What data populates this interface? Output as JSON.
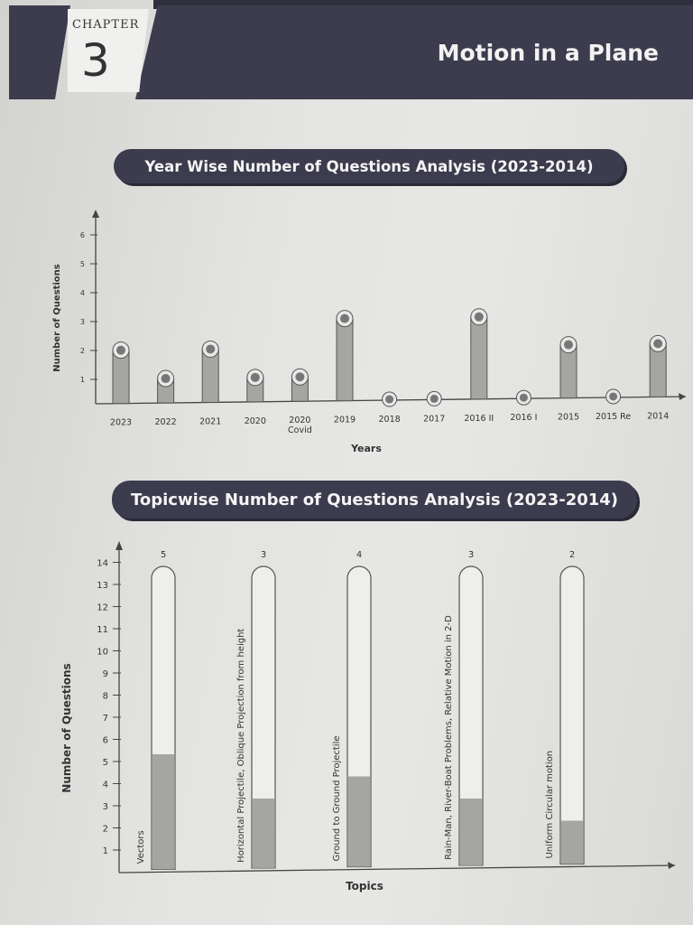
{
  "header": {
    "chapter_label": "CHAPTER",
    "chapter_number": "3",
    "chapter_title": "Motion in a Plane"
  },
  "colors": {
    "band": "#3c3c4e",
    "bar_fill": "#a5a5a2",
    "bar_outline": "#555555",
    "marker": "#777777"
  },
  "chart_data": [
    {
      "type": "bar",
      "title": "Year Wise Number of Questions Analysis (2023-2014)",
      "xlabel": "Years",
      "ylabel": "Number of Questions",
      "categories": [
        "2023",
        "2022",
        "2021",
        "2020",
        "2020 Covid",
        "2019",
        "2018",
        "2017",
        "2016 II",
        "2016 I",
        "2015",
        "2015 Re",
        "2014"
      ],
      "category_lines": [
        [
          "2023"
        ],
        [
          "2022"
        ],
        [
          "2021"
        ],
        [
          "2020"
        ],
        [
          "2020",
          "Covid"
        ],
        [
          "2019"
        ],
        [
          "2018"
        ],
        [
          "2017"
        ],
        [
          "2016 II"
        ],
        [
          "2016 I"
        ],
        [
          "2015"
        ],
        [
          "2015 Re"
        ],
        [
          "2014"
        ]
      ],
      "values": [
        2,
        1,
        2,
        1,
        1,
        3,
        0,
        0,
        3,
        0,
        2,
        0,
        2
      ],
      "yticks": [
        1,
        2,
        3,
        4,
        5,
        6
      ],
      "ylim": [
        0,
        6
      ],
      "grid": false
    },
    {
      "type": "bar",
      "title": "Topicwise Number of Questions Analysis (2023-2014)",
      "xlabel": "Topics",
      "ylabel": "Number of Questions",
      "categories": [
        "Vectors",
        "Horizontal Projectile, Oblique Projection from height",
        "Ground to Ground Projectile",
        "Rain-Man, River-Boat Problems, Relative Motion in 2-D",
        "Uniform Circular motion"
      ],
      "values": [
        5,
        3,
        4,
        3,
        2
      ],
      "data_labels": [
        "5",
        "3",
        "4",
        "3",
        "2"
      ],
      "yticks": [
        1,
        2,
        3,
        4,
        5,
        6,
        7,
        8,
        9,
        10,
        11,
        12,
        13,
        14
      ],
      "ylim": [
        0,
        14
      ],
      "grid": false
    }
  ]
}
